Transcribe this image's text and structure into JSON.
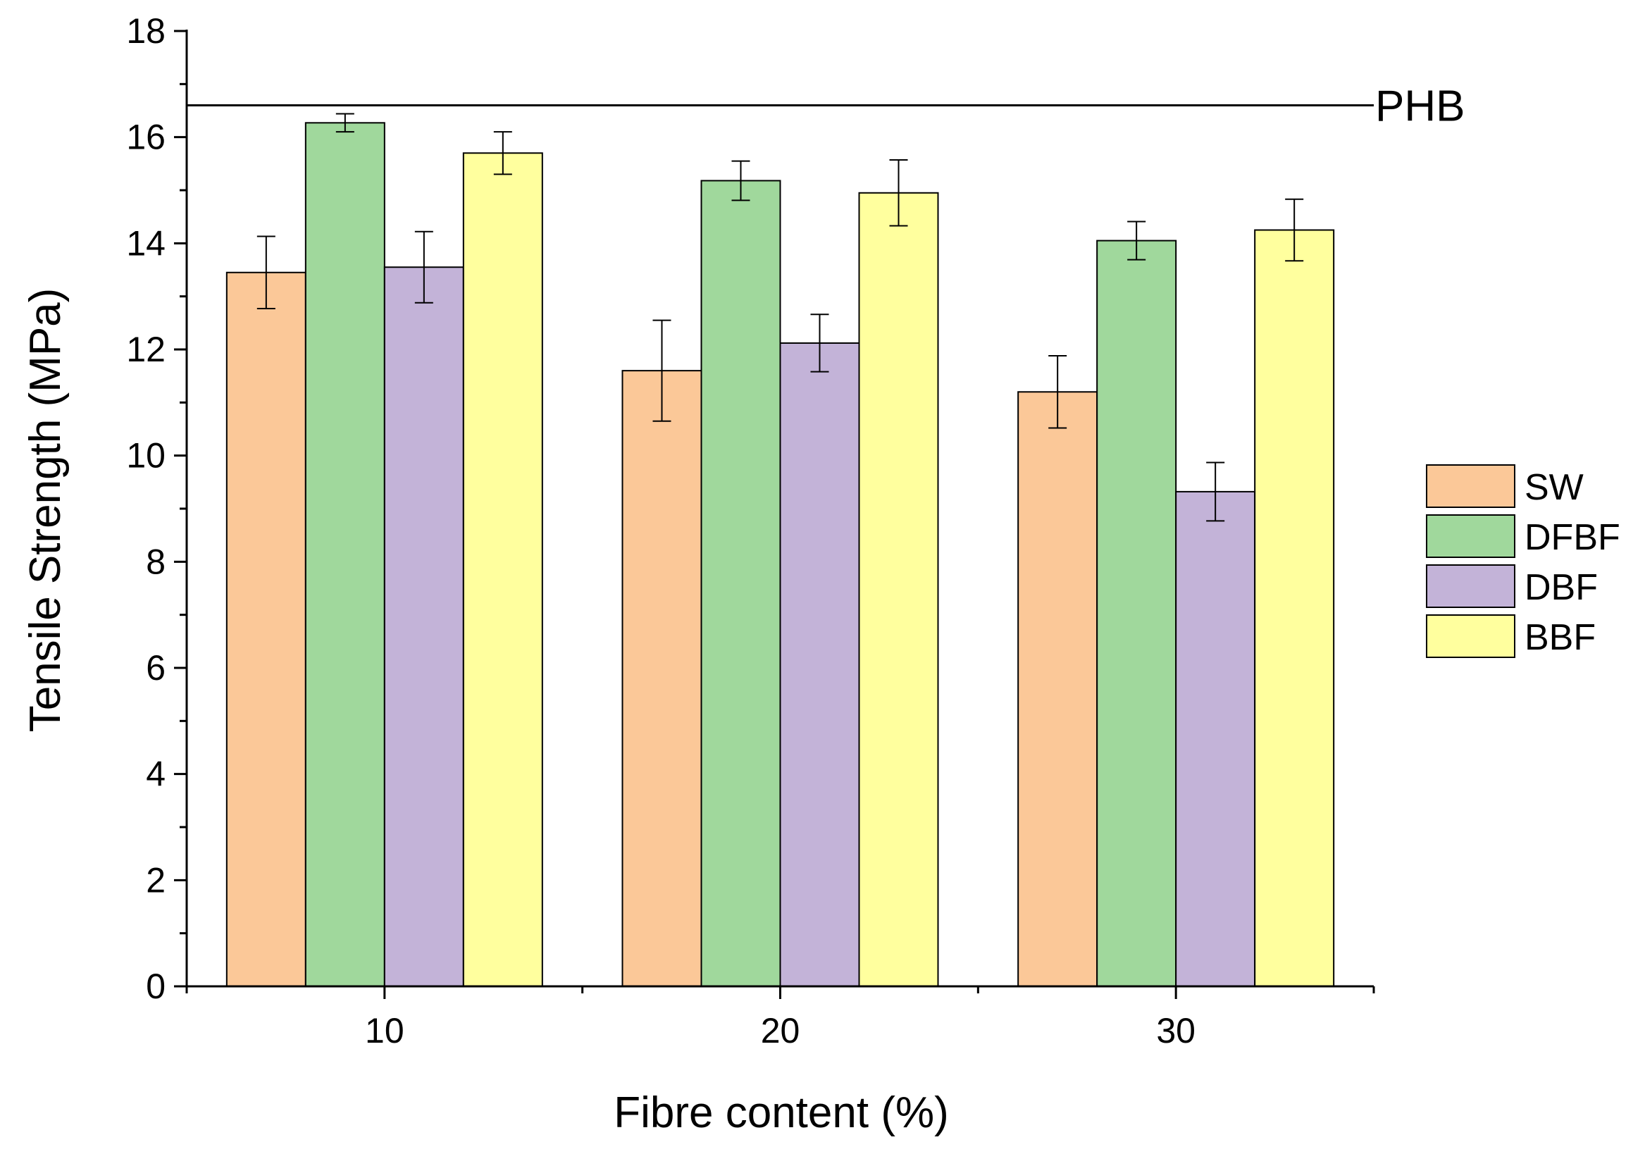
{
  "chart_data": {
    "type": "bar",
    "title": "",
    "xlabel": "Fibre content (%)",
    "ylabel": "Tensile Strength (MPa)",
    "categories": [
      "10",
      "20",
      "30"
    ],
    "ylim": [
      0,
      18
    ],
    "yticks": [
      0,
      2,
      4,
      6,
      8,
      10,
      12,
      14,
      16,
      18
    ],
    "grid": false,
    "legend_position": "right",
    "series": [
      {
        "name": "SW",
        "color": "#FBC898",
        "values": [
          13.45,
          11.6,
          11.2
        ],
        "errors": [
          0.68,
          0.95,
          0.68
        ]
      },
      {
        "name": "DFBF",
        "color": "#A0D89C",
        "values": [
          16.27,
          15.18,
          14.05
        ],
        "errors": [
          0.17,
          0.37,
          0.36
        ]
      },
      {
        "name": "DBF",
        "color": "#C3B3D8",
        "values": [
          13.55,
          12.12,
          9.32
        ],
        "errors": [
          0.67,
          0.54,
          0.55
        ]
      },
      {
        "name": "BBF",
        "color": "#FFFF9E",
        "values": [
          15.7,
          14.95,
          14.25
        ],
        "errors": [
          0.4,
          0.62,
          0.58
        ]
      }
    ],
    "reference_line": {
      "label": "PHB",
      "value": 16.6
    }
  }
}
